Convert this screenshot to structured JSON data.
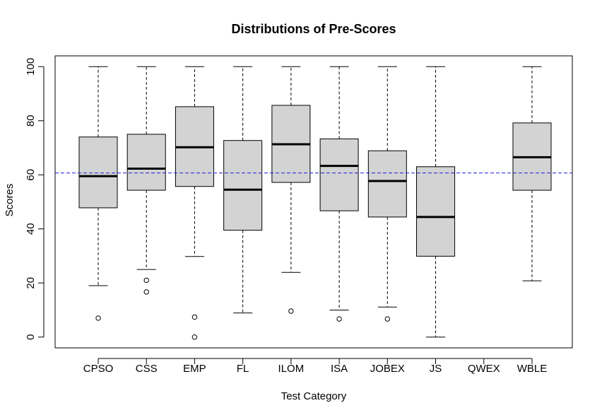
{
  "chart_data": {
    "type": "boxplot",
    "title": "Distributions of Pre-Scores",
    "xlabel": "Test Category",
    "ylabel": "Scores",
    "ylim": [
      -4,
      104
    ],
    "yticks": [
      0,
      20,
      40,
      60,
      80,
      100
    ],
    "categories": [
      "CPSO",
      "CSS",
      "EMP",
      "FL",
      "ILOM",
      "ISA",
      "JOBEX",
      "JS",
      "QWEX",
      "WBLE"
    ],
    "boxes": [
      {
        "category": "CPSO",
        "whisker_low": 19,
        "q1": 47.8,
        "median": 59.5,
        "q3": 74,
        "whisker_high": 100,
        "outliers": [
          7
        ]
      },
      {
        "category": "CSS",
        "whisker_low": 25,
        "q1": 54.3,
        "median": 62.3,
        "q3": 75,
        "whisker_high": 100,
        "outliers": [
          21,
          16.7
        ]
      },
      {
        "category": "EMP",
        "whisker_low": 29.8,
        "q1": 55.7,
        "median": 70.2,
        "q3": 85.2,
        "whisker_high": 100,
        "outliers": [
          7.4,
          0
        ]
      },
      {
        "category": "FL",
        "whisker_low": 8.9,
        "q1": 39.5,
        "median": 54.5,
        "q3": 72.7,
        "whisker_high": 100,
        "outliers": []
      },
      {
        "category": "ILOM",
        "whisker_low": 23.9,
        "q1": 57.2,
        "median": 71.3,
        "q3": 85.7,
        "whisker_high": 100,
        "outliers": [
          9.6
        ]
      },
      {
        "category": "ISA",
        "whisker_low": 10,
        "q1": 46.7,
        "median": 63.3,
        "q3": 73.3,
        "whisker_high": 100,
        "outliers": [
          6.7
        ]
      },
      {
        "category": "JOBEX",
        "whisker_low": 11.1,
        "q1": 44.4,
        "median": 57.7,
        "q3": 68.9,
        "whisker_high": 100,
        "outliers": [
          6.7
        ]
      },
      {
        "category": "JS",
        "whisker_low": 0,
        "q1": 29.9,
        "median": 44.4,
        "q3": 63,
        "whisker_high": 100,
        "outliers": []
      },
      {
        "category": "QWEX",
        "empty": true
      },
      {
        "category": "WBLE",
        "whisker_low": 20.8,
        "q1": 54.3,
        "median": 66.5,
        "q3": 79.2,
        "whisker_high": 100,
        "outliers": []
      }
    ],
    "reference_line": {
      "y": 60.7,
      "color": "#1f1fd6",
      "style": "dashed"
    },
    "box_fill": "#d3d3d3",
    "grid": false,
    "legend": "none"
  }
}
